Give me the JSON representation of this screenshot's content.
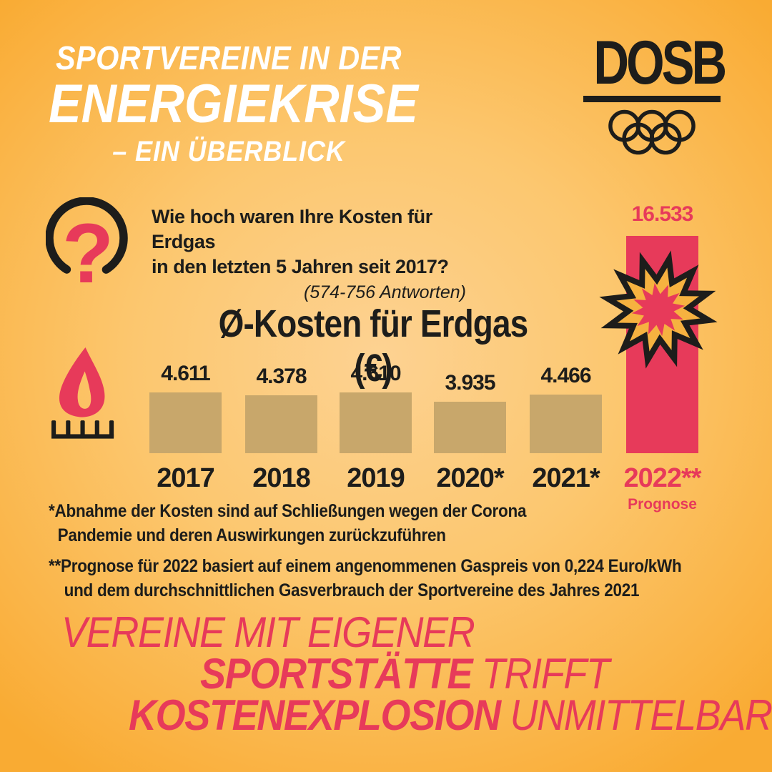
{
  "title": {
    "line1": "SPORTVEREINE IN DER",
    "line2": "ENERGIEKRISE",
    "line3": "– EIN ÜBERBLICK"
  },
  "logo": {
    "wordmark": "DOSB"
  },
  "question": {
    "line1": "Wie hoch waren Ihre Kosten für Erdgas",
    "line2": "in den letzten 5 Jahren seit 2017?",
    "responses": "(574-756 Antworten)"
  },
  "chart_data": {
    "type": "bar",
    "title": "Ø-Kosten für Erdgas (€)",
    "categories": [
      "2017",
      "2018",
      "2019",
      "2020*",
      "2021*",
      "2022**"
    ],
    "values": [
      4611,
      4378,
      4610,
      3935,
      4466,
      16533
    ],
    "value_labels": [
      "4.611",
      "4.378",
      "4.610",
      "3.935",
      "4.466",
      "16.533"
    ],
    "highlight_index": 5,
    "highlight_sublabel": "Prognose",
    "xlabel": "",
    "ylabel": "",
    "ylim": [
      0,
      16533
    ],
    "grid": false,
    "legend": "none",
    "bar_color": "#c8a76b",
    "highlight_color": "#e73a5a"
  },
  "footnotes": {
    "note1_line1": "*Abnahme der Kosten sind auf Schließungen wegen der Corona",
    "note1_line2": "Pandemie und deren Auswirkungen zurückzuführen",
    "note2_line1": "**Prognose für 2022 basiert auf einem angenommenen Gaspreis von 0,224 Euro/kWh",
    "note2_line2": "und dem durchschnittlichen Gasverbrauch der Sportvereine des Jahres 2021"
  },
  "headline": {
    "line1": "VEREINE MIT EIGENER",
    "line2_bold": "SPORTSTÄTTE",
    "line2_light": " TRIFFT",
    "line3_bold": "KOSTENEXPLOSION",
    "line3_light": " UNMITTELBAR"
  },
  "colors": {
    "red": "#e73a5a",
    "tan": "#c8a76b",
    "black": "#1d1d1b",
    "bg-center": "#fdd292",
    "bg-edge": "#f9ab33",
    "burst-yellow": "#f6b240",
    "white": "#ffffff"
  }
}
